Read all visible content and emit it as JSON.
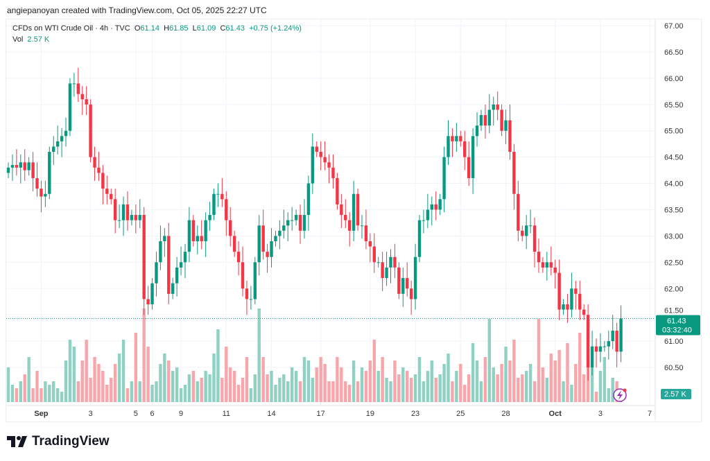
{
  "credit": "angiepanoyan created with TradingView.com, Oct 05, 2025 22:27 UTC",
  "legend": {
    "symbol": "CFDs on WTI Crude Oil · 4h · TVC",
    "o_label": "O",
    "o": "61.14",
    "h_label": "H",
    "h": "61.85",
    "l_label": "L",
    "l": "61.09",
    "c_label": "C",
    "c": "61.43",
    "change": "+0.75 (+1.24%)",
    "vol_label": "Vol",
    "vol": "2.57 K"
  },
  "price_label": {
    "price": "61.43",
    "countdown": "03:32:40"
  },
  "vol_label": "2.57 K",
  "logo": "TradingView",
  "colors": {
    "up": "#089981",
    "down": "#f23645",
    "up_vol": "#8fd1c3",
    "down_vol": "#f7a6ab"
  },
  "chart_data": {
    "type": "candlestick",
    "title": "CFDs on WTI Crude Oil · 4h · TVC",
    "y_ticks": [
      "67.00",
      "66.50",
      "66.00",
      "65.50",
      "65.00",
      "64.50",
      "64.00",
      "63.50",
      "63.00",
      "62.50",
      "62.00",
      "61.50",
      "61.00",
      "60.50"
    ],
    "ylim": [
      60.2,
      67.2
    ],
    "x_ticks": [
      {
        "label": "Sep",
        "i": 8
      },
      {
        "label": "3",
        "i": 20
      },
      {
        "label": "5",
        "i": 31
      },
      {
        "label": "6",
        "i": 35
      },
      {
        "label": "9",
        "i": 42
      },
      {
        "label": "11",
        "i": 53
      },
      {
        "label": "14",
        "i": 64
      },
      {
        "label": "17",
        "i": 76
      },
      {
        "label": "19",
        "i": 88
      },
      {
        "label": "23",
        "i": 99
      },
      {
        "label": "25",
        "i": 110
      },
      {
        "label": "28",
        "i": 121
      },
      {
        "label": "Oct",
        "i": 133
      },
      {
        "label": "3",
        "i": 144
      },
      {
        "label": "7",
        "i": 156
      }
    ],
    "first_open": 64.2,
    "closes": [
      64.3,
      64.35,
      64.3,
      64.4,
      64.25,
      64.4,
      64.1,
      63.9,
      63.75,
      63.8,
      64.6,
      64.7,
      64.8,
      64.9,
      65.0,
      65.9,
      65.9,
      65.7,
      65.6,
      65.5,
      64.5,
      64.3,
      64.2,
      63.9,
      63.8,
      63.7,
      63.3,
      63.3,
      63.6,
      63.3,
      63.4,
      63.3,
      63.4,
      61.8,
      61.7,
      62.1,
      62.5,
      62.9,
      63.0,
      61.9,
      62.1,
      62.4,
      62.5,
      62.7,
      63.3,
      62.9,
      63.0,
      62.9,
      63.3,
      63.4,
      63.8,
      63.8,
      63.7,
      63.3,
      63.0,
      62.7,
      62.5,
      62.0,
      61.8,
      61.8,
      62.5,
      63.2,
      62.7,
      62.6,
      62.9,
      63.0,
      63.1,
      63.2,
      63.3,
      63.3,
      63.4,
      63.1,
      63.4,
      64.0,
      64.7,
      64.6,
      64.5,
      64.4,
      64.3,
      64.1,
      63.6,
      63.4,
      63.3,
      63.1,
      63.8,
      63.2,
      63.2,
      62.9,
      62.8,
      62.5,
      62.5,
      62.2,
      62.4,
      62.6,
      62.4,
      61.9,
      62.2,
      62.0,
      61.8,
      62.6,
      63.3,
      63.3,
      63.5,
      63.6,
      63.5,
      63.7,
      64.5,
      64.9,
      64.8,
      64.9,
      64.8,
      64.5,
      64.1,
      64.9,
      65.1,
      65.3,
      65.1,
      65.4,
      65.5,
      65.4,
      65.0,
      65.2,
      64.6,
      63.8,
      63.1,
      63.0,
      63.2,
      63.2,
      62.7,
      62.5,
      62.4,
      62.5,
      62.4,
      62.3,
      61.6,
      61.7,
      61.6,
      62.0,
      61.9,
      61.6,
      61.5,
      60.5,
      60.9,
      60.8,
      60.9,
      60.9,
      61.0,
      61.2,
      60.8,
      61.43
    ],
    "volumes": [
      10,
      5,
      4,
      6,
      8,
      13,
      4,
      9,
      4,
      6,
      5,
      6,
      4,
      3,
      12,
      18,
      16,
      6,
      12,
      18,
      7,
      13,
      11,
      9,
      5,
      7,
      11,
      14,
      18,
      4,
      6,
      20,
      6,
      27,
      16,
      5,
      6,
      11,
      14,
      12,
      9,
      10,
      4,
      5,
      8,
      9,
      6,
      7,
      9,
      8,
      14,
      21,
      7,
      16,
      10,
      9,
      5,
      7,
      13,
      4,
      8,
      27,
      13,
      8,
      9,
      5,
      7,
      8,
      6,
      10,
      9,
      6,
      13,
      12,
      7,
      10,
      13,
      11,
      6,
      6,
      13,
      10,
      6,
      5,
      12,
      6,
      10,
      9,
      12,
      18,
      9,
      13,
      7,
      6,
      12,
      8,
      10,
      9,
      7,
      8,
      13,
      6,
      9,
      12,
      7,
      8,
      11,
      14,
      6,
      9,
      11,
      5,
      8,
      17,
      12,
      6,
      13,
      24,
      10,
      8,
      11,
      16,
      12,
      18,
      7,
      8,
      9,
      11,
      6,
      24,
      10,
      7,
      14,
      12,
      15,
      6,
      17,
      5,
      11,
      20,
      8,
      13,
      10,
      3,
      9,
      13,
      4,
      7,
      6,
      3
    ],
    "last_price": 61.43
  }
}
